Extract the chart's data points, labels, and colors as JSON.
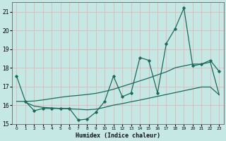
{
  "xlabel": "Humidex (Indice chaleur)",
  "xlim": [
    -0.5,
    23.5
  ],
  "ylim": [
    15,
    21.5
  ],
  "yticks": [
    15,
    16,
    17,
    18,
    19,
    20,
    21
  ],
  "xticks": [
    0,
    1,
    2,
    3,
    4,
    5,
    6,
    7,
    8,
    9,
    10,
    11,
    12,
    13,
    14,
    15,
    16,
    17,
    18,
    19,
    20,
    21,
    22,
    23
  ],
  "background_color": "#c5e8e5",
  "grid_color": "#e0b8b8",
  "line_color": "#1a6b5a",
  "series1_x": [
    0,
    1,
    2,
    3,
    4,
    5,
    6,
    7,
    8,
    9,
    10,
    11,
    12,
    13,
    14,
    15,
    16,
    17,
    18,
    19,
    20,
    21,
    22,
    23
  ],
  "series1_y": [
    17.55,
    16.2,
    15.7,
    15.82,
    15.82,
    15.82,
    15.82,
    15.2,
    15.25,
    15.62,
    16.2,
    17.55,
    16.45,
    16.65,
    18.55,
    18.4,
    16.65,
    19.3,
    20.1,
    21.2,
    18.1,
    18.2,
    18.4,
    17.8
  ],
  "series2_x": [
    0,
    1,
    2,
    3,
    4,
    5,
    6,
    7,
    8,
    9,
    10,
    11,
    12,
    13,
    14,
    15,
    16,
    17,
    18,
    19,
    20,
    21,
    22,
    23
  ],
  "series2_y": [
    16.2,
    16.2,
    16.22,
    16.28,
    16.35,
    16.42,
    16.48,
    16.52,
    16.57,
    16.63,
    16.73,
    16.85,
    17.0,
    17.15,
    17.3,
    17.45,
    17.62,
    17.78,
    18.0,
    18.1,
    18.2,
    18.2,
    18.3,
    16.55
  ],
  "series3_x": [
    1,
    2,
    3,
    4,
    5,
    6,
    7,
    8,
    9,
    10,
    11,
    12,
    13,
    14,
    15,
    16,
    17,
    18,
    19,
    20,
    21,
    22,
    23
  ],
  "series3_y": [
    16.15,
    15.95,
    15.88,
    15.85,
    15.82,
    15.8,
    15.78,
    15.75,
    15.78,
    15.88,
    16.0,
    16.08,
    16.18,
    16.27,
    16.37,
    16.47,
    16.57,
    16.67,
    16.77,
    16.87,
    16.97,
    16.97,
    16.55
  ]
}
